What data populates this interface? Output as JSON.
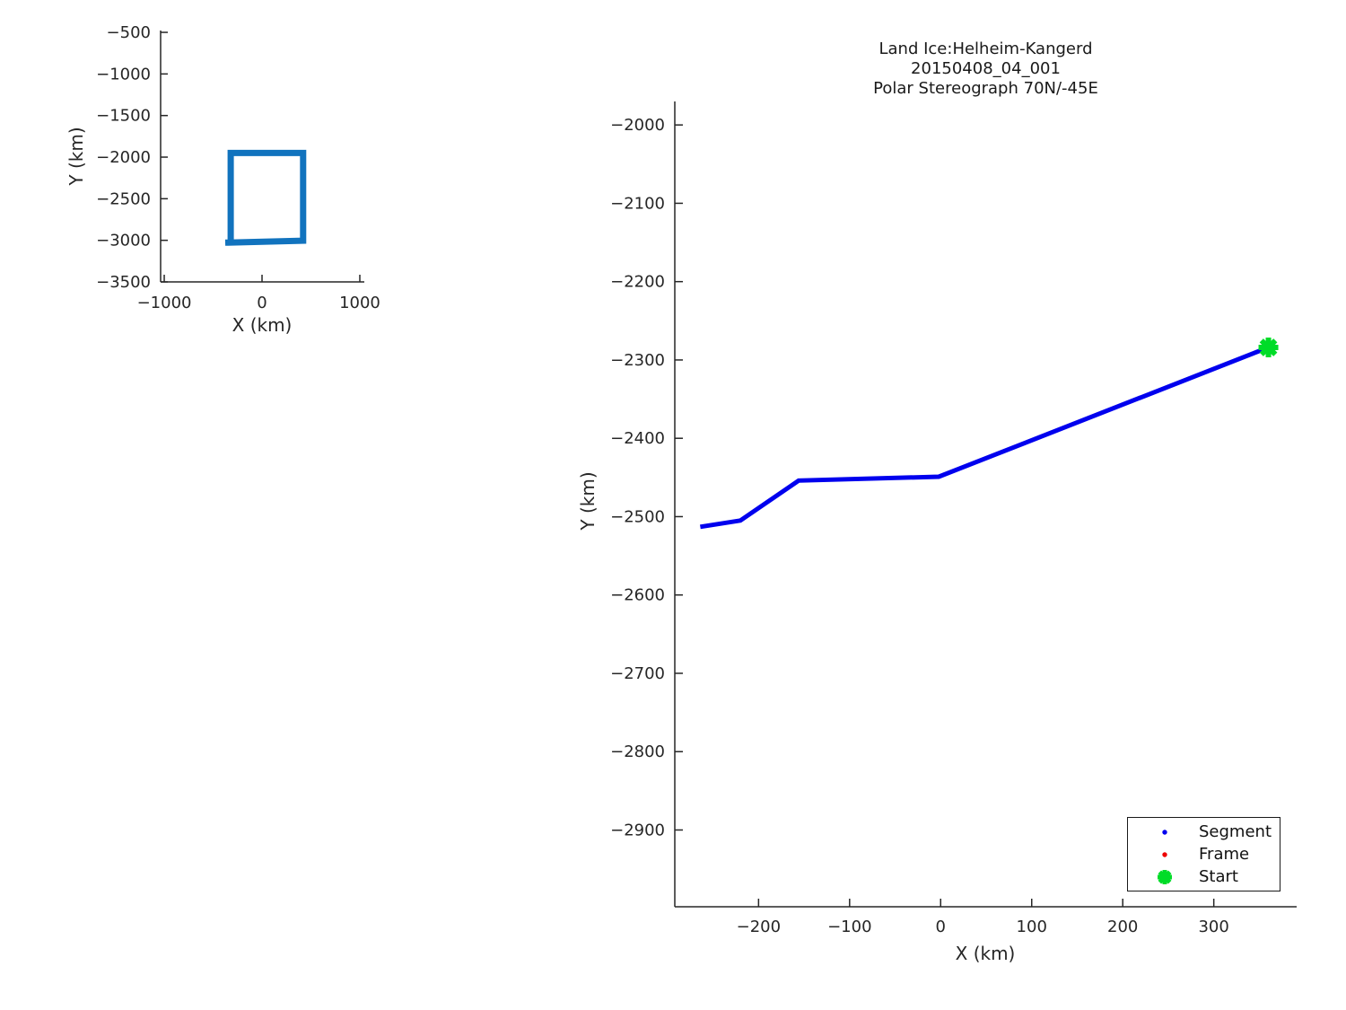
{
  "figure": {
    "background": "#ffffff",
    "axis_color": "#262626",
    "text_color": "#262626",
    "title_color": "#1a1a1a"
  },
  "chart_data": [
    {
      "id": "overview",
      "type": "line",
      "title": "",
      "xlabel": "X (km)",
      "ylabel": "Y (km)",
      "xlim": [
        -1037,
        1046
      ],
      "ylim": [
        -3500,
        -478
      ],
      "xticks": [
        -1000,
        0,
        1000
      ],
      "yticks": [
        -500,
        -1000,
        -1500,
        -2000,
        -2500,
        -3000,
        -3500
      ],
      "grid": false,
      "legend": null,
      "series": [
        {
          "name": "coverage-outline",
          "color": "#1173BE",
          "line_width": 7,
          "points": [
            [
              -320,
              -3005
            ],
            [
              -320,
              -1950
            ],
            [
              420,
              -1950
            ],
            [
              420,
              -3005
            ],
            [
              -376,
              -3028
            ]
          ]
        }
      ],
      "markers": []
    },
    {
      "id": "track",
      "type": "line",
      "title": "Land Ice:Helheim-Kangerd 20150408_04_001 Polar Stereograph 70N/-45E",
      "title_lines": [
        "Land Ice:Helheim-Kangerd",
        "20150408_04_001",
        "Polar Stereograph 70N/-45E"
      ],
      "xlabel": "X (km)",
      "ylabel": "Y (km)",
      "xlim": [
        -292,
        391
      ],
      "ylim": [
        -2998,
        -1970
      ],
      "xticks": [
        -200,
        -100,
        0,
        100,
        200,
        300
      ],
      "yticks": [
        -2000,
        -2100,
        -2200,
        -2300,
        -2400,
        -2500,
        -2600,
        -2700,
        -2800,
        -2900
      ],
      "grid": false,
      "series": [
        {
          "name": "segment-track",
          "color": "#0000EE",
          "line_width": 5,
          "points": [
            [
              -264,
              -2513
            ],
            [
              -220,
              -2505
            ],
            [
              -156,
              -2454
            ],
            [
              -2,
              -2449
            ],
            [
              360,
              -2284
            ]
          ]
        }
      ],
      "markers": [
        {
          "name": "start",
          "shape": "asterisk",
          "color": "#00DC28",
          "x": 360,
          "y": -2284,
          "size": 22,
          "stroke_width": 6
        }
      ],
      "legend": {
        "position": "lower right",
        "entries": [
          {
            "label": "Segment",
            "marker": "dot",
            "color": "#0000EE"
          },
          {
            "label": "Frame",
            "marker": "dot",
            "color": "#EE0000"
          },
          {
            "label": "Start",
            "marker": "asterisk",
            "color": "#00DC28"
          }
        ]
      }
    }
  ]
}
